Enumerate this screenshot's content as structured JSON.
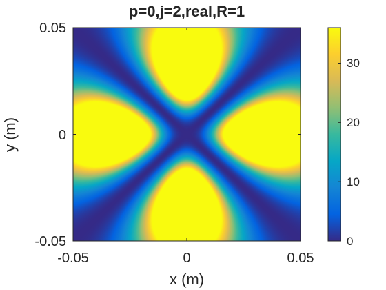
{
  "chart_data": {
    "type": "heatmap",
    "title": "p=0,j=2,real,R=1",
    "xlabel": "x (m)",
    "ylabel": "y (m)",
    "xlim": [
      -0.05,
      0.05
    ],
    "ylim": [
      -0.05,
      0.05
    ],
    "x_ticks": [
      {
        "value": -0.05,
        "label": "-0.05"
      },
      {
        "value": 0,
        "label": "0"
      },
      {
        "value": 0.05,
        "label": "0.05"
      }
    ],
    "y_ticks": [
      {
        "value": -0.05,
        "label": "-0.05"
      },
      {
        "value": 0,
        "label": "0"
      },
      {
        "value": 0.05,
        "label": "0.05"
      }
    ],
    "colorbar": {
      "colormap": "parula",
      "limits": [
        0,
        36
      ],
      "ticks": [
        {
          "value": 0,
          "label": "0"
        },
        {
          "value": 10,
          "label": "10"
        },
        {
          "value": 20,
          "label": "20"
        },
        {
          "value": 30,
          "label": "30"
        }
      ]
    },
    "field": {
      "description": "four-lobed intensity pattern",
      "lobe_centers": [
        [
          0,
          0.016
        ],
        [
          0,
          -0.016
        ],
        [
          -0.016,
          0
        ],
        [
          0.016,
          0
        ]
      ],
      "peak_value": 36,
      "nodal_lines": [
        "y = x",
        "y = -x"
      ]
    },
    "grid": false
  }
}
